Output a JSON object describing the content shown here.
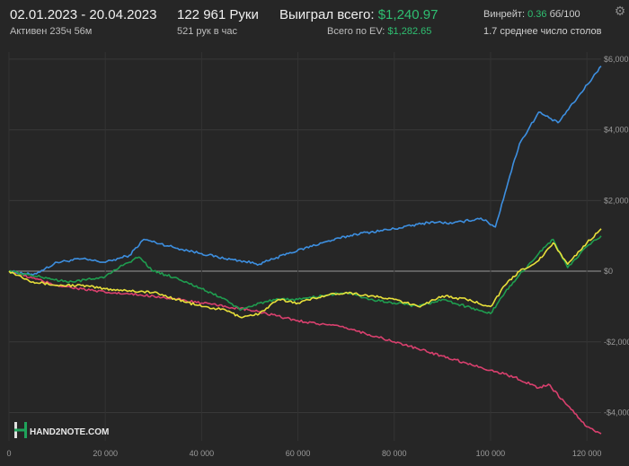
{
  "header": {
    "date_range": "02.01.2023 - 20.04.2023",
    "active_time": "Активен 235ч 56м",
    "hands": "122 961 Руки",
    "hands_per_hour": "521 рук в час",
    "won_label": "Выиграл всего:",
    "won_value": "$1,240.97",
    "ev_label": "Всего по EV:",
    "ev_value": "$1,282.65",
    "winrate_label": "Винрейт:",
    "winrate_value": "0.36",
    "winrate_unit": "бб/100",
    "avg_tables": "1.7 среднее число столов",
    "settings_icon": "gear-icon"
  },
  "logo": {
    "text": "HAND2NOTE.COM"
  },
  "chart_data": {
    "type": "line",
    "xlim": [
      0,
      122961
    ],
    "ylim": [
      -4800,
      6200
    ],
    "x_ticks": [
      0,
      20000,
      40000,
      60000,
      80000,
      100000,
      120000
    ],
    "x_tick_labels": [
      "0",
      "20 000",
      "40 000",
      "60 000",
      "80 000",
      "100 000",
      "120 000"
    ],
    "y_ticks": [
      6000,
      4000,
      2000,
      0,
      -2000,
      -4000
    ],
    "y_tick_labels": [
      "$6,000",
      "$4,000",
      "$2,000",
      "$0",
      "-$2,000",
      "-$4,000"
    ],
    "grid": true,
    "series": [
      {
        "color": "#3d8fe0",
        "x": [
          0,
          5000,
          10000,
          15000,
          20000,
          25000,
          28000,
          35000,
          40000,
          45000,
          48000,
          52000,
          58000,
          65000,
          72000,
          80000,
          88000,
          92000,
          98000,
          101000,
          104000,
          106000,
          110000,
          114000,
          118000,
          122961
        ],
        "y": [
          0,
          -100,
          250,
          350,
          250,
          450,
          900,
          650,
          500,
          350,
          300,
          200,
          500,
          800,
          1050,
          1200,
          1400,
          1350,
          1500,
          1250,
          2700,
          3600,
          4500,
          4200,
          4900,
          5800
        ]
      },
      {
        "color": "#e8e03a",
        "x": [
          0,
          5000,
          10000,
          15000,
          20000,
          25000,
          30000,
          35000,
          40000,
          45000,
          48000,
          52000,
          56000,
          60000,
          65000,
          70000,
          75000,
          80000,
          85000,
          90000,
          95000,
          100000,
          103000,
          106000,
          110000,
          113000,
          116000,
          120000,
          122961
        ],
        "y": [
          0,
          -300,
          -400,
          -400,
          -500,
          -550,
          -600,
          -800,
          -1000,
          -1100,
          -1300,
          -1200,
          -800,
          -900,
          -700,
          -600,
          -700,
          -800,
          -1000,
          -700,
          -800,
          -1000,
          -400,
          0,
          300,
          800,
          200,
          800,
          1200
        ]
      },
      {
        "color": "#1f9d4f",
        "x": [
          0,
          4000,
          8000,
          12000,
          16000,
          20000,
          24000,
          27000,
          30000,
          35000,
          40000,
          45000,
          48000,
          52000,
          56000,
          60000,
          65000,
          70000,
          75000,
          80000,
          85000,
          90000,
          95000,
          100000,
          103000,
          106000,
          110000,
          113000,
          116000,
          120000,
          122961
        ],
        "y": [
          0,
          -100,
          -200,
          -300,
          -250,
          -150,
          200,
          400,
          0,
          -200,
          -500,
          -800,
          -1100,
          -900,
          -800,
          -800,
          -700,
          -600,
          -800,
          -900,
          -1000,
          -800,
          -1000,
          -1200,
          -600,
          -100,
          500,
          900,
          100,
          700,
          1000
        ]
      },
      {
        "color": "#d9406e",
        "x": [
          0,
          10000,
          20000,
          30000,
          40000,
          50000,
          60000,
          70000,
          80000,
          85000,
          90000,
          95000,
          100000,
          105000,
          110000,
          112000,
          116000,
          120000,
          122961
        ],
        "y": [
          0,
          -400,
          -600,
          -700,
          -900,
          -1100,
          -1400,
          -1600,
          -2000,
          -2200,
          -2400,
          -2600,
          -2800,
          -3000,
          -3300,
          -3200,
          -3800,
          -4400,
          -4600
        ]
      }
    ]
  }
}
